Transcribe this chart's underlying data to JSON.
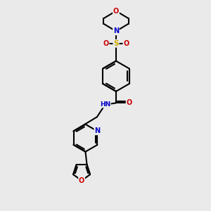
{
  "bg_color": "#eaeaea",
  "bond_color": "#000000",
  "atom_colors": {
    "N": "#0000cc",
    "O": "#cc0000",
    "S": "#ccaa00",
    "C": "#000000",
    "H": "#666666"
  },
  "figsize": [
    3.0,
    3.0
  ],
  "dpi": 100
}
